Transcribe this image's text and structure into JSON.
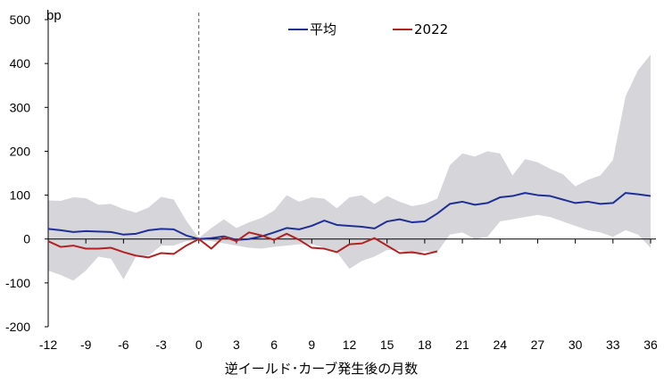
{
  "chart_data": {
    "type": "line",
    "ylabel": "bp",
    "xlabel": "逆イールド･カーブ発生後の月数",
    "ylim": [
      -200,
      500
    ],
    "xlim": [
      -12,
      36
    ],
    "yticks": [
      500,
      400,
      300,
      200,
      100,
      0,
      -100,
      -200
    ],
    "xticks": [
      -12,
      -9,
      -6,
      -3,
      0,
      3,
      6,
      9,
      12,
      15,
      18,
      21,
      24,
      27,
      30,
      33,
      36
    ],
    "vertical_reference_x": 0,
    "legend_position": "top-center",
    "colors": {
      "avg": "#1f2f96",
      "y2022": "#b22222",
      "band": "#d6d6da",
      "axis": "#000000",
      "refline": "#555555"
    },
    "band": {
      "x": [
        -12,
        -11,
        -10,
        -9,
        -8,
        -7,
        -6,
        -5,
        -4,
        -3,
        -2,
        -1,
        0,
        1,
        2,
        3,
        4,
        5,
        6,
        7,
        8,
        9,
        10,
        11,
        12,
        13,
        14,
        15,
        16,
        17,
        18,
        19,
        20,
        21,
        22,
        23,
        24,
        25,
        26,
        27,
        28,
        29,
        30,
        31,
        32,
        33,
        34,
        35,
        36
      ],
      "upper": [
        88,
        87,
        95,
        93,
        78,
        80,
        68,
        60,
        72,
        96,
        90,
        42,
        2,
        25,
        45,
        25,
        38,
        48,
        65,
        100,
        85,
        95,
        92,
        70,
        95,
        100,
        80,
        98,
        85,
        75,
        80,
        92,
        168,
        195,
        188,
        200,
        195,
        145,
        182,
        175,
        160,
        148,
        120,
        135,
        145,
        180,
        325,
        385,
        420
      ],
      "lower": [
        -72,
        -82,
        -95,
        -72,
        -40,
        -45,
        -92,
        -40,
        -38,
        -15,
        -15,
        -5,
        -2,
        -5,
        -10,
        -15,
        -20,
        -22,
        -18,
        -15,
        -12,
        -12,
        -20,
        -30,
        -68,
        -50,
        -40,
        -25,
        -25,
        -35,
        -28,
        -30,
        10,
        15,
        0,
        5,
        40,
        45,
        50,
        55,
        50,
        40,
        30,
        20,
        15,
        5,
        20,
        10,
        -20
      ]
    },
    "series": [
      {
        "name": "平均",
        "key": "avg",
        "x": [
          -12,
          -11,
          -10,
          -9,
          -8,
          -7,
          -6,
          -5,
          -4,
          -3,
          -2,
          -1,
          0,
          1,
          2,
          3,
          4,
          5,
          6,
          7,
          8,
          9,
          10,
          11,
          12,
          13,
          14,
          15,
          16,
          17,
          18,
          19,
          20,
          21,
          22,
          23,
          24,
          25,
          26,
          27,
          28,
          29,
          30,
          31,
          32,
          33,
          34,
          35,
          36
        ],
        "values": [
          23,
          20,
          16,
          18,
          17,
          16,
          10,
          12,
          20,
          23,
          22,
          8,
          0,
          2,
          6,
          -2,
          0,
          6,
          15,
          25,
          22,
          30,
          42,
          32,
          30,
          28,
          24,
          40,
          45,
          38,
          40,
          58,
          80,
          85,
          78,
          82,
          95,
          98,
          105,
          100,
          98,
          90,
          82,
          85,
          80,
          82,
          105,
          102,
          98
        ]
      },
      {
        "name": "2022",
        "key": "y2022",
        "x": [
          -12,
          -11,
          -10,
          -9,
          -8,
          -7,
          -6,
          -5,
          -4,
          -3,
          -2,
          -1,
          0,
          1,
          2,
          3,
          4,
          5,
          6,
          7,
          8,
          9,
          10,
          11,
          12,
          13,
          14,
          15,
          16,
          17,
          18,
          19
        ],
        "values": [
          -5,
          -18,
          -15,
          -22,
          -22,
          -20,
          -30,
          -38,
          -42,
          -32,
          -34,
          -15,
          0,
          -22,
          5,
          -5,
          15,
          8,
          -2,
          12,
          -2,
          -20,
          -22,
          -30,
          -12,
          -10,
          2,
          -15,
          -32,
          -30,
          -35,
          -28
        ]
      }
    ]
  }
}
